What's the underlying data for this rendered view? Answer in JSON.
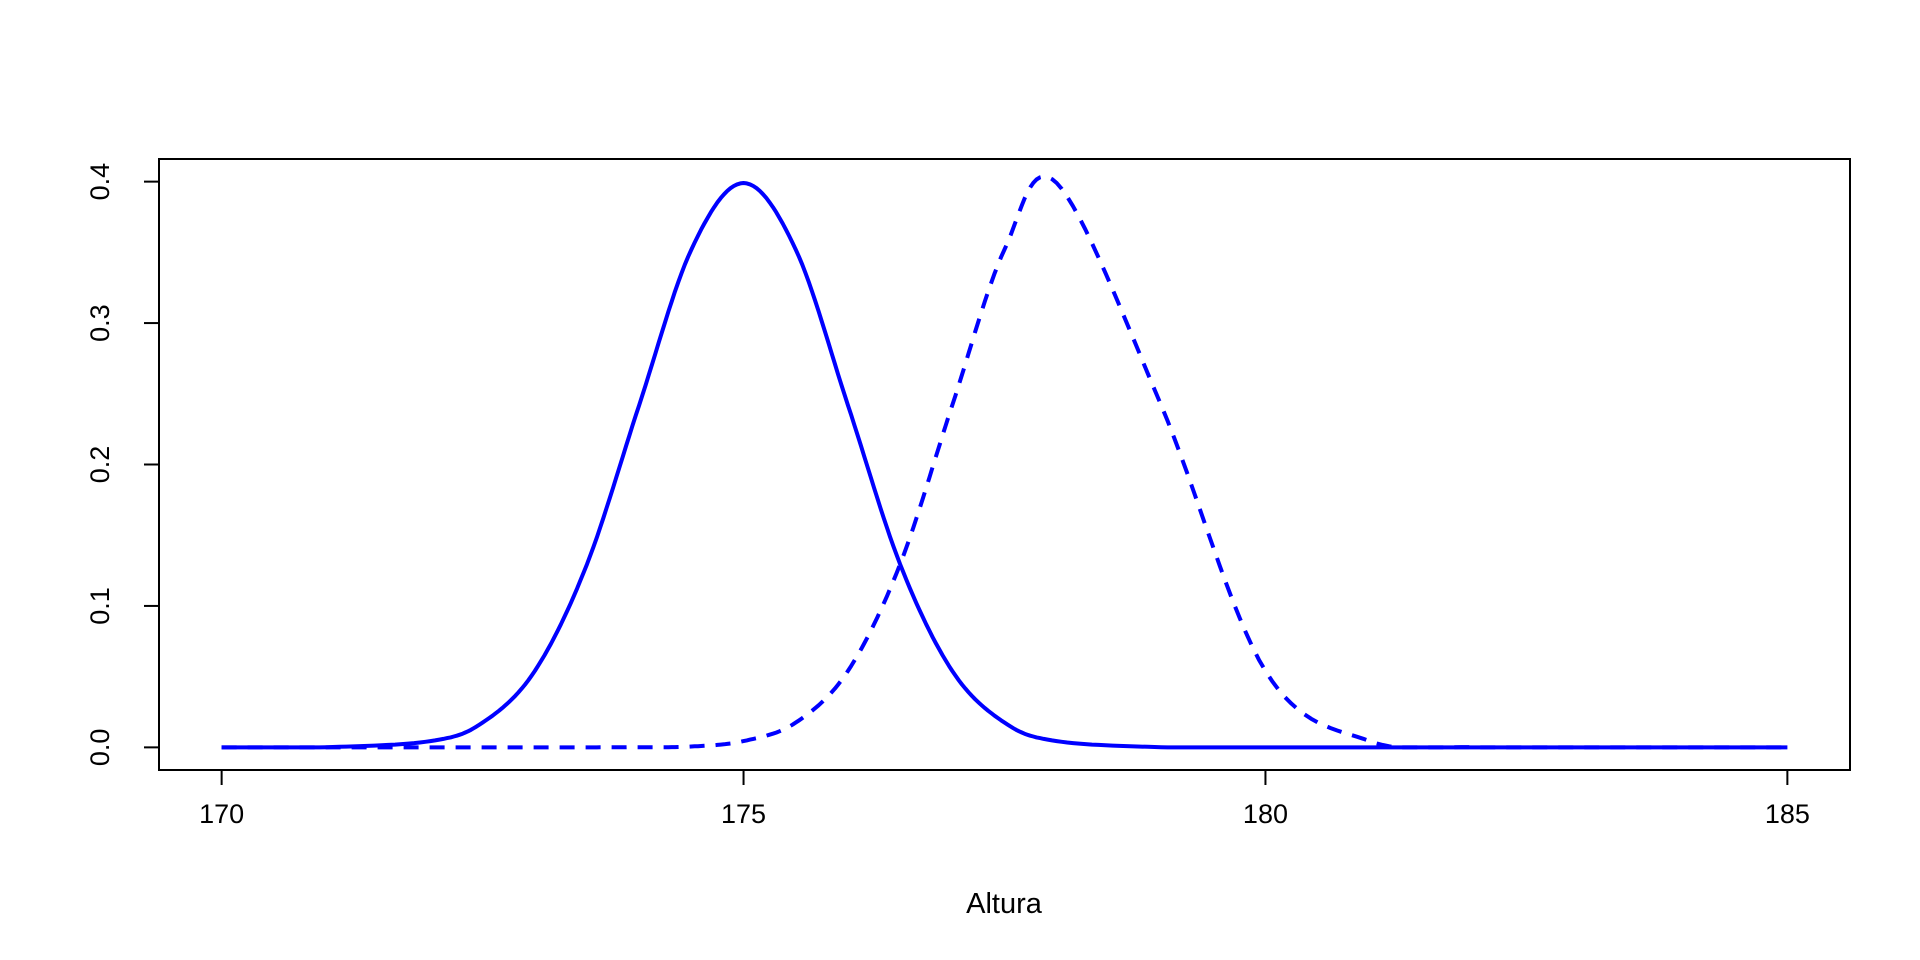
{
  "chart_data": {
    "type": "line",
    "title": "",
    "xlabel": "Altura",
    "ylabel": "",
    "xlim": [
      169.4,
      185.6
    ],
    "ylim": [
      -0.016,
      0.416
    ],
    "x_ticks": [
      170,
      175,
      180,
      185
    ],
    "y_ticks": [
      0.0,
      0.1,
      0.2,
      0.3,
      0.4
    ],
    "x_tick_labels": [
      "170",
      "175",
      "180",
      "185"
    ],
    "y_tick_labels": [
      "0.0",
      "0.1",
      "0.2",
      "0.3",
      "0.4"
    ],
    "x": [
      170,
      171,
      172,
      172.5,
      173,
      173.5,
      174,
      174.5,
      175,
      175.5,
      176,
      176.5,
      177,
      177.5,
      178,
      179,
      180,
      181,
      182,
      183,
      185
    ],
    "series": [
      {
        "values": [
          1.5e-06,
          0.000134,
          0.00443,
          0.0175,
          0.054,
          0.1295,
          0.242,
          0.352,
          0.399,
          0.352,
          0.242,
          0.1295,
          0.054,
          0.0175,
          0.00443,
          0.000134,
          1.5e-06,
          0.0,
          0.0,
          0.0,
          0.0
        ],
        "color": "#0000ff",
        "line_style": "solid"
      },
      {
        "values": [
          0.0,
          0.0,
          0.0,
          0.0,
          0.0,
          1.5e-06,
          0.000134,
          0.0006,
          0.00443,
          0.0175,
          0.054,
          0.1295,
          0.242,
          0.352,
          0.399,
          0.242,
          0.054,
          0.00443,
          0.000134,
          1.5e-06,
          0.0
        ],
        "color": "#0000ff",
        "line_style": "dashed"
      }
    ],
    "grid": false,
    "legend": "none"
  }
}
